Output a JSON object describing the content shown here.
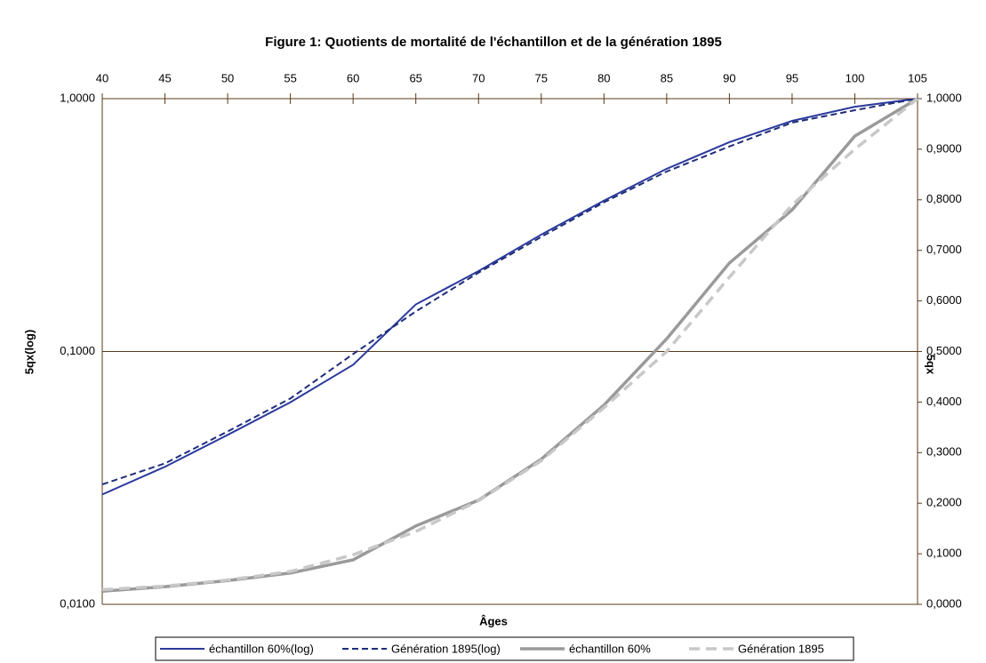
{
  "chart_data": {
    "type": "line",
    "title": "Figure 1: Quotients de mortalité de l'échantillon et de la génération 1895",
    "x_label": "Âges",
    "y_label": "5qx(log)",
    "y2_label": "5qx",
    "x": [
      40,
      45,
      50,
      55,
      60,
      65,
      70,
      75,
      80,
      85,
      90,
      95,
      100,
      105
    ],
    "xlim": [
      40,
      105
    ],
    "xticks": [
      40,
      45,
      50,
      55,
      60,
      65,
      70,
      75,
      80,
      85,
      90,
      95,
      100,
      105
    ],
    "x_axis_position": "top",
    "ylim": [
      0.01,
      1
    ],
    "y_scale": "log",
    "yticks": [
      {
        "value": 0.01,
        "label": "0,0100"
      },
      {
        "value": 0.1,
        "label": "0,1000"
      },
      {
        "value": 1,
        "label": "1,0000"
      }
    ],
    "y2lim": [
      0,
      1
    ],
    "y2ticks": [
      {
        "value": 0,
        "label": "0,0000"
      },
      {
        "value": 0.1,
        "label": "0,1000"
      },
      {
        "value": 0.2,
        "label": "0,2000"
      },
      {
        "value": 0.3,
        "label": "0,3000"
      },
      {
        "value": 0.4,
        "label": "0,4000"
      },
      {
        "value": 0.5,
        "label": "0,5000"
      },
      {
        "value": 0.6,
        "label": "0,6000"
      },
      {
        "value": 0.7,
        "label": "0,7000"
      },
      {
        "value": 0.8,
        "label": "0,8000"
      },
      {
        "value": 0.9,
        "label": "0,9000"
      },
      {
        "value": 1,
        "label": "1,0000"
      }
    ],
    "grid": true,
    "legend": "bottom",
    "series": [
      {
        "name": "échantillon 60%(log)",
        "color": "#2b3a9c",
        "style": "solid",
        "axis": "y",
        "values": [
          0.0272,
          0.035,
          0.0468,
          0.063,
          0.0886,
          0.1535,
          0.208,
          0.29,
          0.395,
          0.528,
          0.673,
          0.817,
          0.929,
          1.0
        ]
      },
      {
        "name": "Génération 1895(log)",
        "color": "#1f2d7a",
        "style": "dashed",
        "axis": "y",
        "values": [
          0.0298,
          0.0361,
          0.0483,
          0.0652,
          0.0977,
          0.144,
          0.205,
          0.284,
          0.389,
          0.515,
          0.647,
          0.804,
          0.9,
          1.0
        ]
      },
      {
        "name": "échantillon 60%",
        "color": "#9a9a9a",
        "style": "solid",
        "axis": "y2",
        "values": [
          0.026,
          0.035,
          0.047,
          0.062,
          0.088,
          0.155,
          0.206,
          0.287,
          0.394,
          0.525,
          0.675,
          0.78,
          0.926,
          1.0
        ]
      },
      {
        "name": "Génération 1895",
        "color": "#c8c8c8",
        "style": "dashed",
        "axis": "y2",
        "values": [
          0.029,
          0.036,
          0.048,
          0.065,
          0.098,
          0.144,
          0.205,
          0.284,
          0.389,
          0.5,
          0.647,
          0.79,
          0.9,
          1.0
        ]
      }
    ]
  }
}
